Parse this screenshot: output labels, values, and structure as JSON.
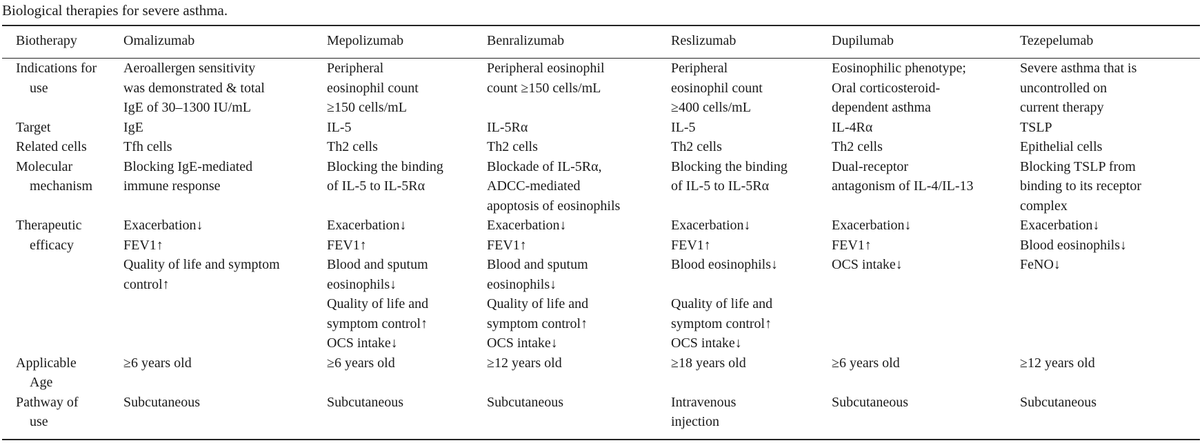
{
  "caption": "Biological therapies for severe asthma.",
  "header": [
    "Biotherapy",
    "Omalizumab",
    "Mepolizumab",
    "Benralizumab",
    "Reslizumab",
    "Dupilumab",
    "Tezepelumab"
  ],
  "rows": [
    {
      "label_lines": [
        "Indications for",
        "use"
      ],
      "cells": [
        [
          "Aeroallergen sensitivity",
          "was demonstrated & total",
          "IgE of 30–1300 IU/mL"
        ],
        [
          "Peripheral",
          "eosinophil count",
          "≥150 cells/mL"
        ],
        [
          "Peripheral eosinophil",
          "count ≥150 cells/mL"
        ],
        [
          "Peripheral",
          "eosinophil count",
          "≥400 cells/mL"
        ],
        [
          "Eosinophilic phenotype;",
          "Oral corticosteroid-",
          "dependent asthma"
        ],
        [
          "Severe asthma that is",
          "uncontrolled on",
          "current therapy"
        ]
      ]
    },
    {
      "label_lines": [
        "Target"
      ],
      "cells": [
        [
          "IgE"
        ],
        [
          "IL-5"
        ],
        [
          "IL-5Rα"
        ],
        [
          "IL-5"
        ],
        [
          "IL-4Rα"
        ],
        [
          "TSLP"
        ]
      ]
    },
    {
      "label_lines": [
        "Related cells"
      ],
      "cells": [
        [
          "Tfh cells"
        ],
        [
          "Th2 cells"
        ],
        [
          "Th2 cells"
        ],
        [
          "Th2 cells"
        ],
        [
          "Th2 cells"
        ],
        [
          "Epithelial cells"
        ]
      ]
    },
    {
      "label_lines": [
        "Molecular",
        "mechanism"
      ],
      "cells": [
        [
          "Blocking IgE-mediated",
          "immune response"
        ],
        [
          "Blocking the binding",
          "of IL-5 to IL-5Rα"
        ],
        [
          "Blockade of IL-5Rα,",
          "ADCC-mediated",
          "apoptosis of eosinophils"
        ],
        [
          "Blocking the binding",
          "of IL-5 to IL-5Rα"
        ],
        [
          "Dual-receptor",
          "antagonism of IL-4/IL-13"
        ],
        [
          "Blocking TSLP from",
          "binding to its receptor",
          "complex"
        ]
      ]
    },
    {
      "label_lines": [
        "Therapeutic",
        "efficacy"
      ],
      "cells": [
        [
          "Exacerbation↓",
          "FEV1↑",
          "Quality of life and symptom",
          "control↑"
        ],
        [
          "Exacerbation↓",
          "FEV1↑",
          "Blood and sputum",
          "eosinophils↓",
          "Quality of life and",
          "symptom control↑",
          "OCS intake↓"
        ],
        [
          "Exacerbation↓",
          "FEV1↑",
          "Blood and sputum",
          "eosinophils↓",
          "Quality of life and",
          "symptom control↑",
          "OCS intake↓"
        ],
        [
          "Exacerbation↓",
          "FEV1↑",
          "Blood eosinophils↓",
          "",
          "Quality of life and",
          "symptom control↑",
          "OCS intake↓"
        ],
        [
          "Exacerbation↓",
          "FEV1↑",
          "OCS intake↓"
        ],
        [
          "Exacerbation↓",
          "Blood eosinophils↓",
          "FeNO↓"
        ]
      ]
    },
    {
      "label_lines": [
        "Applicable",
        "Age"
      ],
      "cells": [
        [
          "≥6 years old"
        ],
        [
          "≥6 years old"
        ],
        [
          "≥12 years old"
        ],
        [
          "≥18 years old"
        ],
        [
          "≥6 years old"
        ],
        [
          "≥12 years old"
        ]
      ]
    },
    {
      "label_lines": [
        "Pathway of",
        "use"
      ],
      "cells": [
        [
          "Subcutaneous"
        ],
        [
          "Subcutaneous"
        ],
        [
          "Subcutaneous"
        ],
        [
          "Intravenous",
          "injection"
        ],
        [
          "Subcutaneous"
        ],
        [
          "Subcutaneous"
        ]
      ]
    }
  ]
}
